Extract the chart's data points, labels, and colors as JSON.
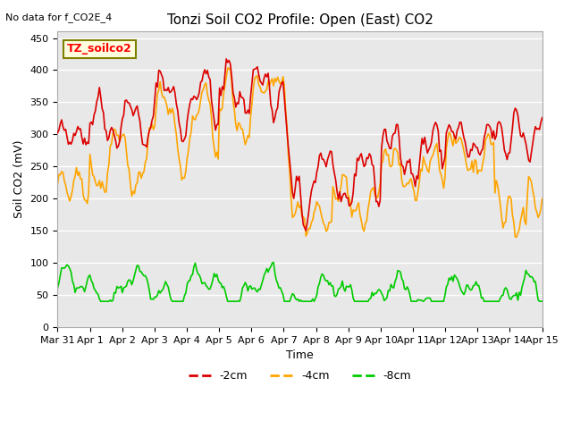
{
  "title": "Tonzi Soil CO2 Profile: Open (East) CO2",
  "subtitle": "No data for f_CO2E_4",
  "xlabel": "Time",
  "ylabel": "Soil CO2 (mV)",
  "ylim": [
    0,
    460
  ],
  "yticks": [
    0,
    50,
    100,
    150,
    200,
    250,
    300,
    350,
    400,
    450
  ],
  "legend_label": "TZ_soilco2",
  "series_labels": [
    "-2cm",
    "-4cm",
    "-8cm"
  ],
  "series_colors": [
    "#dd0000",
    "#ffa500",
    "#00cc00"
  ],
  "background_color": "#ffffff",
  "plot_bg_color": "#e8e8e8",
  "grid_color": "#ffffff",
  "x_tick_labels": [
    "Mar 31",
    "Apr 1",
    "Apr 2",
    "Apr 3",
    "Apr 4",
    "Apr 5",
    "Apr 6",
    "Apr 7",
    "Apr 8",
    "Apr 9",
    "Apr 10",
    "Apr 11",
    "Apr 12",
    "Apr 13",
    "Apr 14",
    "Apr 15"
  ],
  "x_tick_positions": [
    0,
    1,
    2,
    3,
    4,
    5,
    6,
    7,
    8,
    9,
    10,
    11,
    12,
    13,
    14,
    15
  ]
}
